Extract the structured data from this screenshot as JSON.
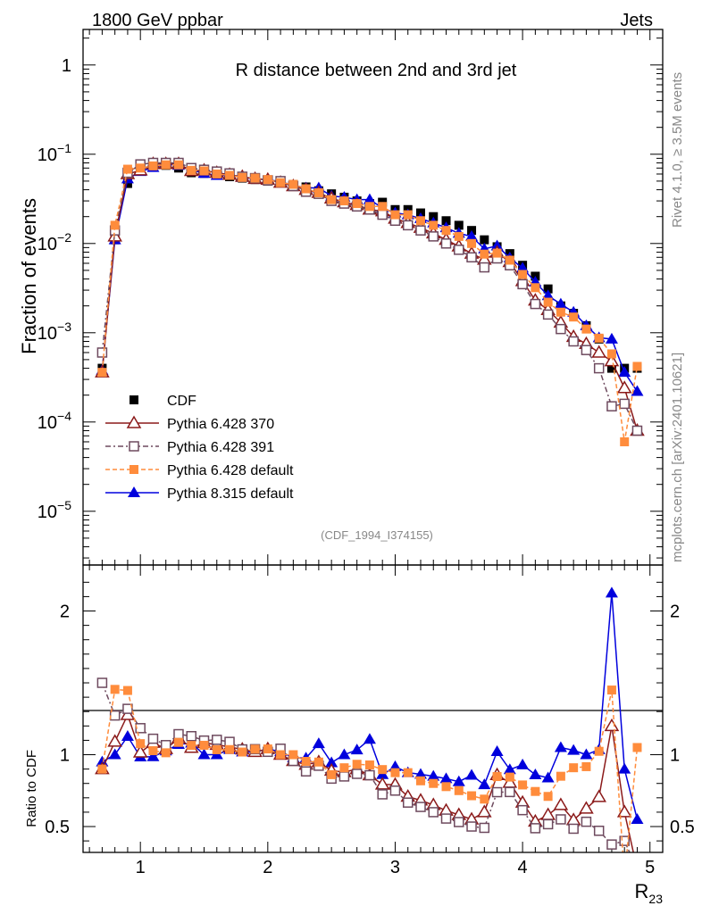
{
  "header": {
    "left": "1800 GeV ppbar",
    "right": "Jets",
    "side_top": "Rivet 4.1.0, ≥ 3.5M events",
    "side_bottom": "mcplots.cern.ch [arXiv:2401.10621]"
  },
  "chart_data": {
    "type": "scatter",
    "title": "R distance between 2nd and 3rd jet",
    "analysis_id": "(CDF_1994_I374155)",
    "ylabel": "Fraction of events",
    "ratio_ylabel": "Ratio to CDF",
    "xlabel_main": "R",
    "xlabel_sub": "23",
    "xlim": [
      0.55,
      5.1
    ],
    "ylim_log": [
      2.5e-06,
      2.5
    ],
    "ratio_ylim": [
      0.32,
      2.32
    ],
    "x_ticks": [
      {
        "v": 1,
        "label": "1"
      },
      {
        "v": 2,
        "label": "2"
      },
      {
        "v": 3,
        "label": "3"
      },
      {
        "v": 4,
        "label": "4"
      },
      {
        "v": 5,
        "label": "5"
      }
    ],
    "y_ticks": [
      {
        "v": 1e-05,
        "base": "10",
        "exp": "−5"
      },
      {
        "v": 0.0001,
        "base": "10",
        "exp": "−4"
      },
      {
        "v": 0.001,
        "base": "10",
        "exp": "−3"
      },
      {
        "v": 0.01,
        "base": "10",
        "exp": "−2"
      },
      {
        "v": 0.1,
        "base": "10",
        "exp": "−1"
      },
      {
        "v": 1,
        "base": "1",
        "exp": ""
      }
    ],
    "ratio_ticks": [
      {
        "v": 0.5,
        "label": "0.5"
      },
      {
        "v": 1,
        "label": "1"
      },
      {
        "v": 2,
        "label": "2"
      }
    ],
    "x": [
      0.7,
      0.8,
      0.9,
      1.0,
      1.1,
      1.2,
      1.3,
      1.4,
      1.5,
      1.6,
      1.7,
      1.8,
      1.9,
      2.0,
      2.1,
      2.2,
      2.3,
      2.4,
      2.5,
      2.6,
      2.7,
      2.8,
      2.9,
      3.0,
      3.1,
      3.2,
      3.3,
      3.4,
      3.5,
      3.6,
      3.7,
      3.8,
      3.9,
      4.0,
      4.1,
      4.2,
      4.3,
      4.4,
      4.5,
      4.6,
      4.7,
      4.8,
      4.9
    ],
    "series": [
      {
        "name": "CDF",
        "color": "#000000",
        "marker": "square-filled",
        "dash": "none",
        "values": [
          0.0004,
          0.011,
          0.047,
          0.065,
          0.072,
          0.075,
          0.07,
          0.062,
          0.061,
          0.058,
          0.056,
          0.054,
          0.052,
          0.05,
          0.048,
          0.046,
          0.043,
          0.039,
          0.036,
          0.033,
          0.03,
          0.028,
          0.029,
          0.024,
          0.024,
          0.022,
          0.02,
          0.018,
          0.016,
          0.014,
          0.011,
          0.0092,
          0.0077,
          0.0057,
          0.0043,
          0.0031,
          0.002,
          0.00165,
          0.0012,
          0.00085,
          0.0004,
          0.0004,
          0.0004
        ]
      },
      {
        "name": "Pythia 6.428 370",
        "color": "#8b1a1a",
        "marker": "triangle-open",
        "dash": "none",
        "values": [
          0.00036,
          0.012,
          0.06,
          0.066,
          0.078,
          0.078,
          0.078,
          0.065,
          0.066,
          0.062,
          0.059,
          0.056,
          0.053,
          0.052,
          0.048,
          0.044,
          0.04,
          0.037,
          0.032,
          0.029,
          0.027,
          0.024,
          0.023,
          0.019,
          0.017,
          0.015,
          0.013,
          0.011,
          0.0093,
          0.0077,
          0.0066,
          0.0079,
          0.0062,
          0.0038,
          0.0023,
          0.0018,
          0.0013,
          0.0009,
          0.00075,
          0.0006,
          0.00048,
          0.00024,
          8e-05
        ]
      },
      {
        "name": "Pythia 6.428 391",
        "color": "#6e4a5e",
        "marker": "square-open",
        "dash": "6,3,2,3",
        "values": [
          0.0006,
          0.014,
          0.062,
          0.077,
          0.08,
          0.08,
          0.08,
          0.07,
          0.067,
          0.064,
          0.061,
          0.056,
          0.054,
          0.051,
          0.05,
          0.044,
          0.038,
          0.036,
          0.03,
          0.028,
          0.026,
          0.024,
          0.021,
          0.018,
          0.016,
          0.014,
          0.012,
          0.01,
          0.0085,
          0.007,
          0.0054,
          0.0068,
          0.0057,
          0.0035,
          0.0021,
          0.0016,
          0.0011,
          0.0008,
          0.00064,
          0.0004,
          0.00015,
          0.00016,
          8e-05
        ]
      },
      {
        "name": "Pythia 6.428 default",
        "color": "#ff8c3c",
        "marker": "square-filled",
        "dash": "5,3",
        "values": [
          0.00036,
          0.016,
          0.068,
          0.07,
          0.074,
          0.076,
          0.076,
          0.066,
          0.065,
          0.06,
          0.058,
          0.055,
          0.054,
          0.052,
          0.048,
          0.046,
          0.041,
          0.037,
          0.031,
          0.03,
          0.028,
          0.026,
          0.026,
          0.021,
          0.021,
          0.018,
          0.016,
          0.014,
          0.012,
          0.01,
          0.0076,
          0.0078,
          0.0065,
          0.0045,
          0.0032,
          0.0022,
          0.0017,
          0.0015,
          0.0011,
          0.00087,
          0.00058,
          6e-05,
          0.00042
        ]
      },
      {
        "name": "Pythia 8.315 default",
        "color": "#0000dd",
        "marker": "triangle-filled",
        "dash": "none",
        "values": [
          0.00038,
          0.011,
          0.053,
          0.064,
          0.071,
          0.077,
          0.075,
          0.067,
          0.061,
          0.058,
          0.058,
          0.055,
          0.053,
          0.052,
          0.049,
          0.045,
          0.042,
          0.042,
          0.034,
          0.033,
          0.031,
          0.031,
          0.025,
          0.022,
          0.021,
          0.019,
          0.017,
          0.015,
          0.013,
          0.012,
          0.0087,
          0.0094,
          0.0069,
          0.0053,
          0.0037,
          0.0026,
          0.0021,
          0.0017,
          0.0012,
          0.00088,
          0.00085,
          0.00036,
          0.00022
        ]
      }
    ]
  }
}
